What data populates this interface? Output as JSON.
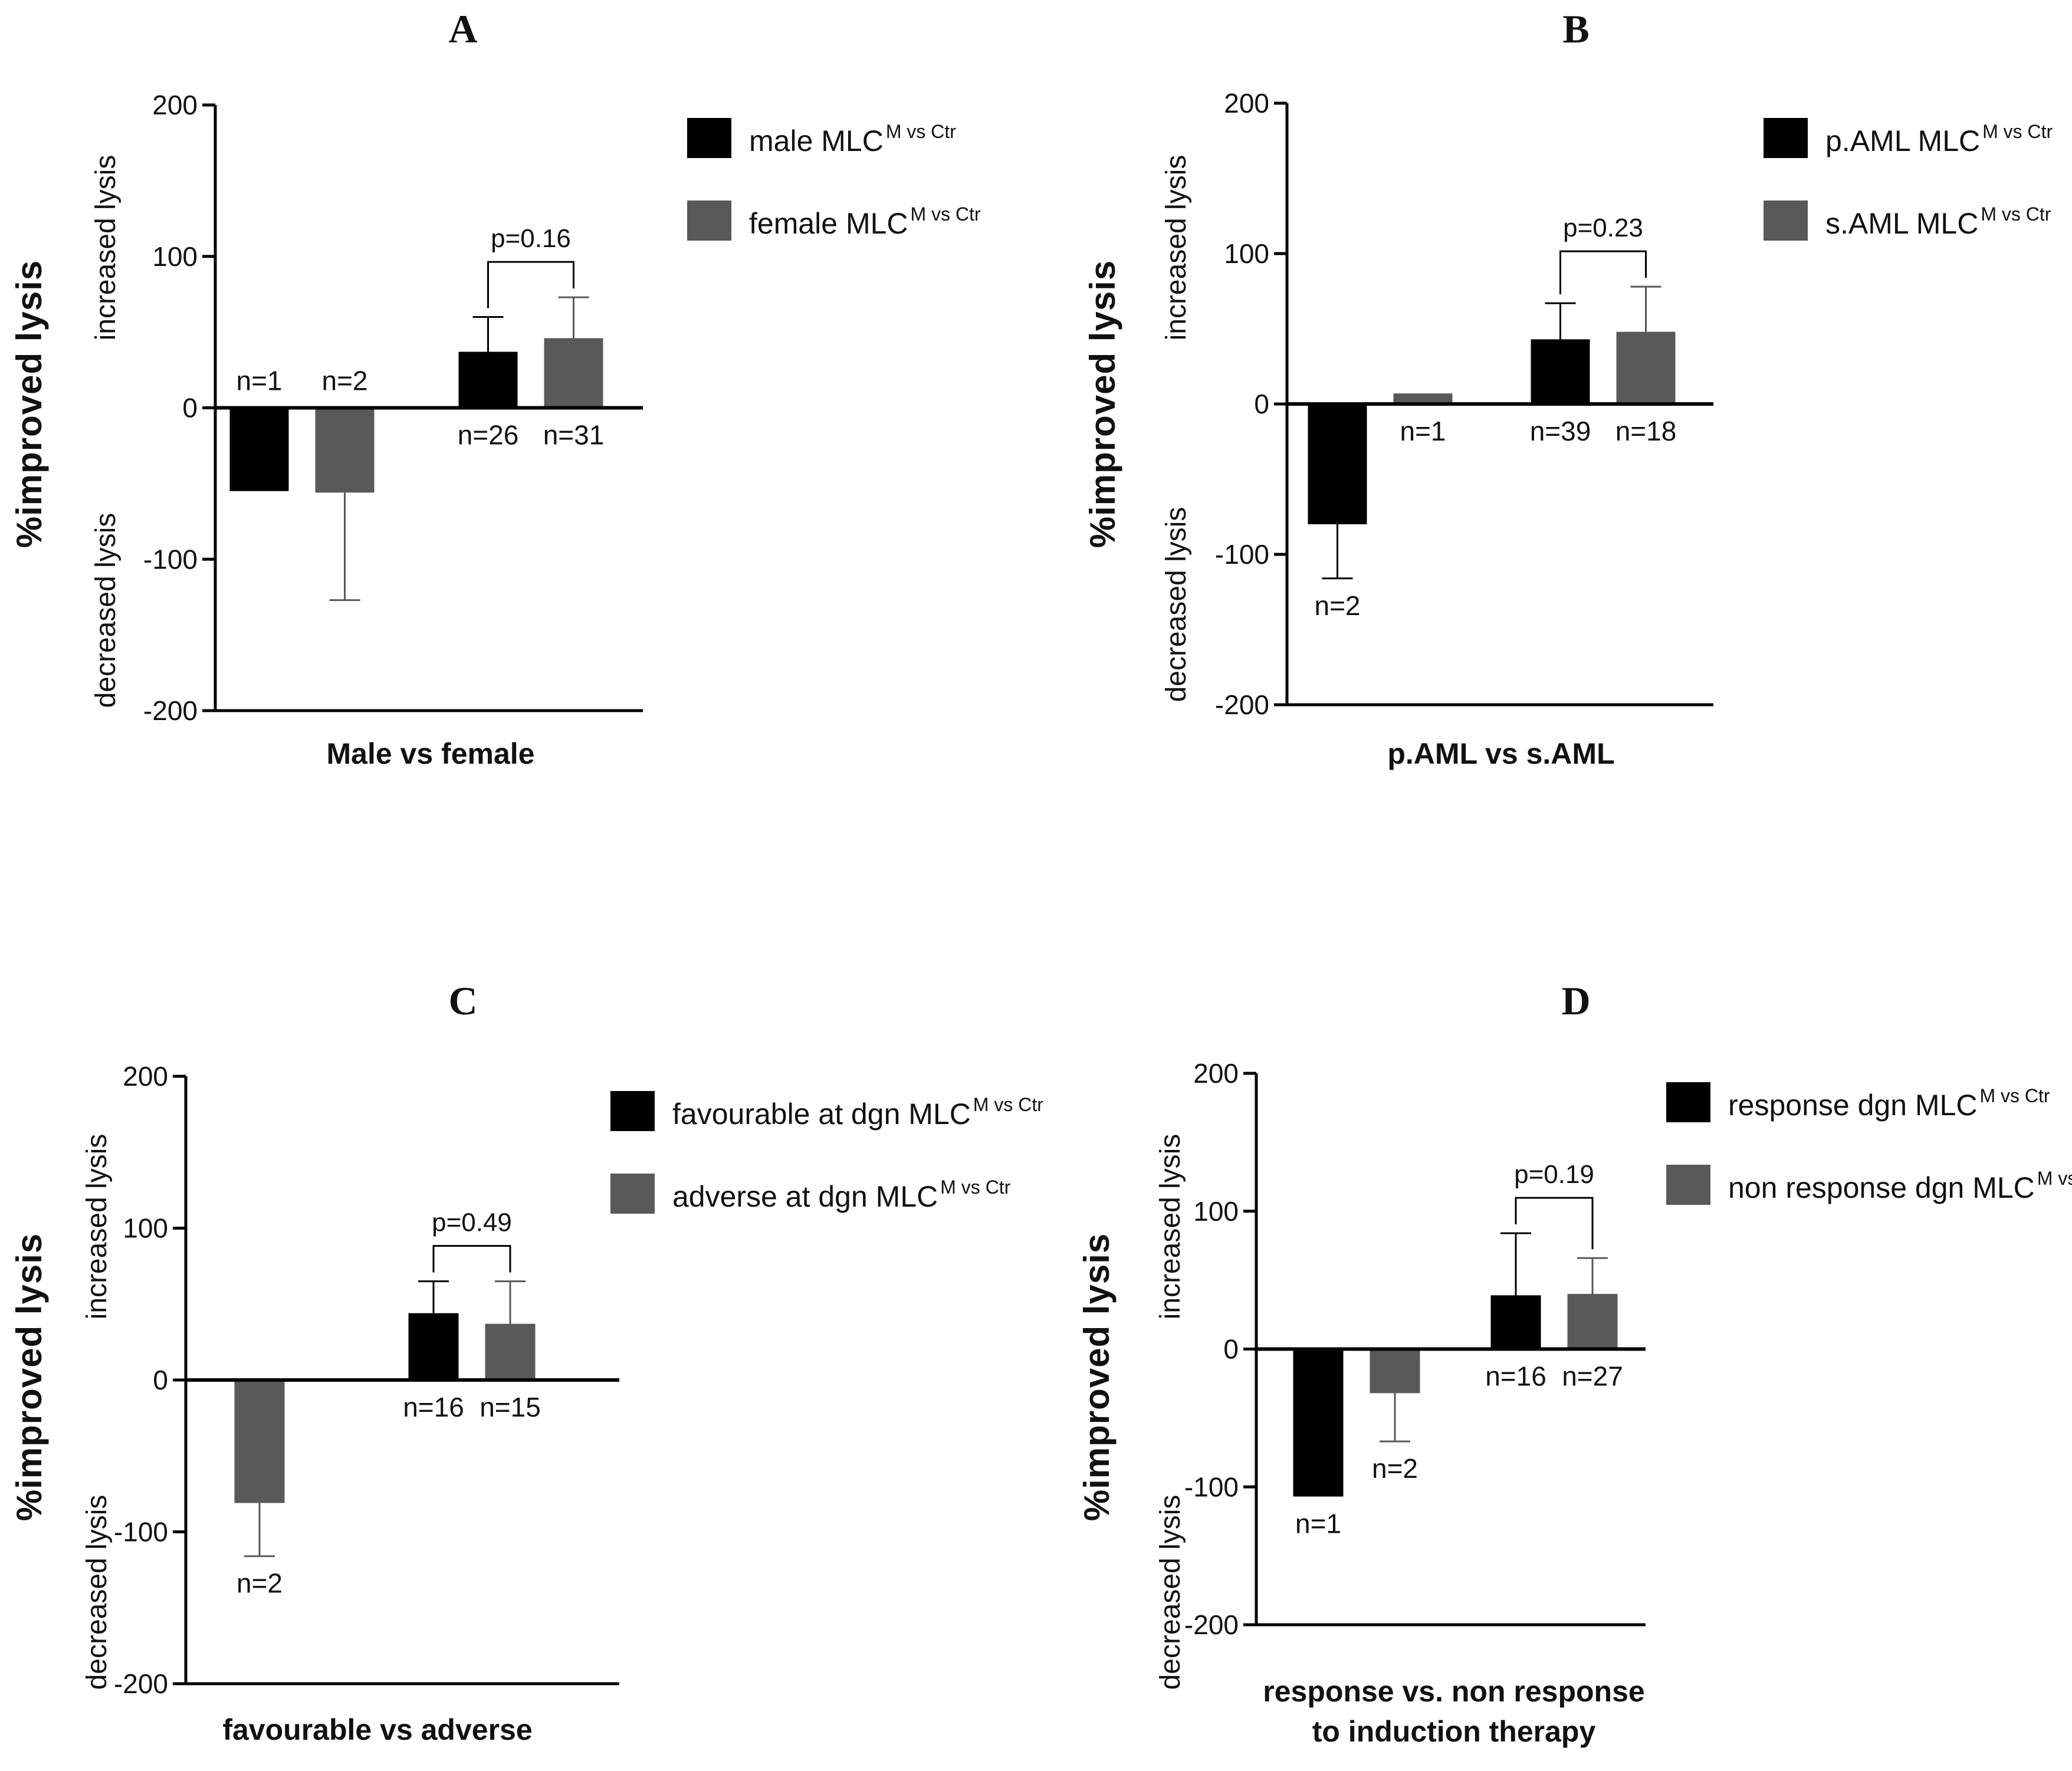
{
  "figure": {
    "y_axis_title": "%improved lysis",
    "increased_label": "increased lysis",
    "decreased_label": "decreased lysis",
    "legend_superscript": "M vs Ctr",
    "colors": {
      "series1": "#000000",
      "series2": "#595959",
      "axis": "#000000"
    }
  },
  "chart_data": [
    {
      "panel": "A",
      "type": "bar",
      "xlabel": "Male vs female",
      "ylim": [
        -200,
        200
      ],
      "yticks": [
        "200",
        "100",
        "0",
        "-100",
        "-200"
      ],
      "legend": [
        "male MLC",
        "female MLC"
      ],
      "groups": [
        {
          "bars": [
            {
              "series": 0,
              "value": -55,
              "err": null,
              "n": "n=1"
            },
            {
              "series": 1,
              "value": -56,
              "err": 71,
              "n": "n=2"
            }
          ]
        },
        {
          "bars": [
            {
              "series": 0,
              "value": 37,
              "err": 23,
              "n": "n=26"
            },
            {
              "series": 1,
              "value": 46,
              "err": 27,
              "n": "n=31"
            }
          ],
          "p": "p=0.16"
        }
      ]
    },
    {
      "panel": "B",
      "type": "bar",
      "xlabel": "p.AML vs s.AML",
      "ylim": [
        -200,
        200
      ],
      "yticks": [
        "200",
        "100",
        "0",
        "-100",
        "-200"
      ],
      "legend": [
        "p.AML MLC",
        "s.AML MLC"
      ],
      "groups": [
        {
          "bars": [
            {
              "series": 0,
              "value": -80,
              "err": 36,
              "n": "n=2"
            },
            {
              "series": 1,
              "value": 7,
              "err": null,
              "n": "n=1"
            }
          ]
        },
        {
          "bars": [
            {
              "series": 0,
              "value": 43,
              "err": 24,
              "n": "n=39"
            },
            {
              "series": 1,
              "value": 48,
              "err": 30,
              "n": "n=18"
            }
          ],
          "p": "p=0.23"
        }
      ]
    },
    {
      "panel": "C",
      "type": "bar",
      "xlabel": "favourable vs adverse",
      "ylim": [
        -200,
        200
      ],
      "yticks": [
        "200",
        "100",
        "0",
        "-100",
        "-200"
      ],
      "legend": [
        "favourable at dgn MLC",
        "adverse at dgn MLC"
      ],
      "groups": [
        {
          "bars": [
            {
              "series": 1,
              "value": -81,
              "err": 35,
              "n": "n=2"
            }
          ]
        },
        {
          "bars": [
            {
              "series": 0,
              "value": 44,
              "err": 21,
              "n": "n=16"
            },
            {
              "series": 1,
              "value": 37,
              "err": 28,
              "n": "n=15"
            }
          ],
          "p": "p=0.49"
        }
      ]
    },
    {
      "panel": "D",
      "type": "bar",
      "xlabel": "response vs. non response",
      "xlabel2": "to induction therapy",
      "ylim": [
        -200,
        200
      ],
      "yticks": [
        "200",
        "100",
        "0",
        "-100",
        "-200"
      ],
      "legend": [
        "response dgn MLC",
        "non response dgn MLC"
      ],
      "groups": [
        {
          "bars": [
            {
              "series": 0,
              "value": -107,
              "err": null,
              "n": "n=1"
            },
            {
              "series": 1,
              "value": -32,
              "err": 35,
              "n": "n=2"
            }
          ]
        },
        {
          "bars": [
            {
              "series": 0,
              "value": 39,
              "err": 45,
              "n": "n=16"
            },
            {
              "series": 1,
              "value": 40,
              "err": 26,
              "n": "n=27"
            }
          ],
          "p": "p=0.19"
        }
      ]
    }
  ]
}
